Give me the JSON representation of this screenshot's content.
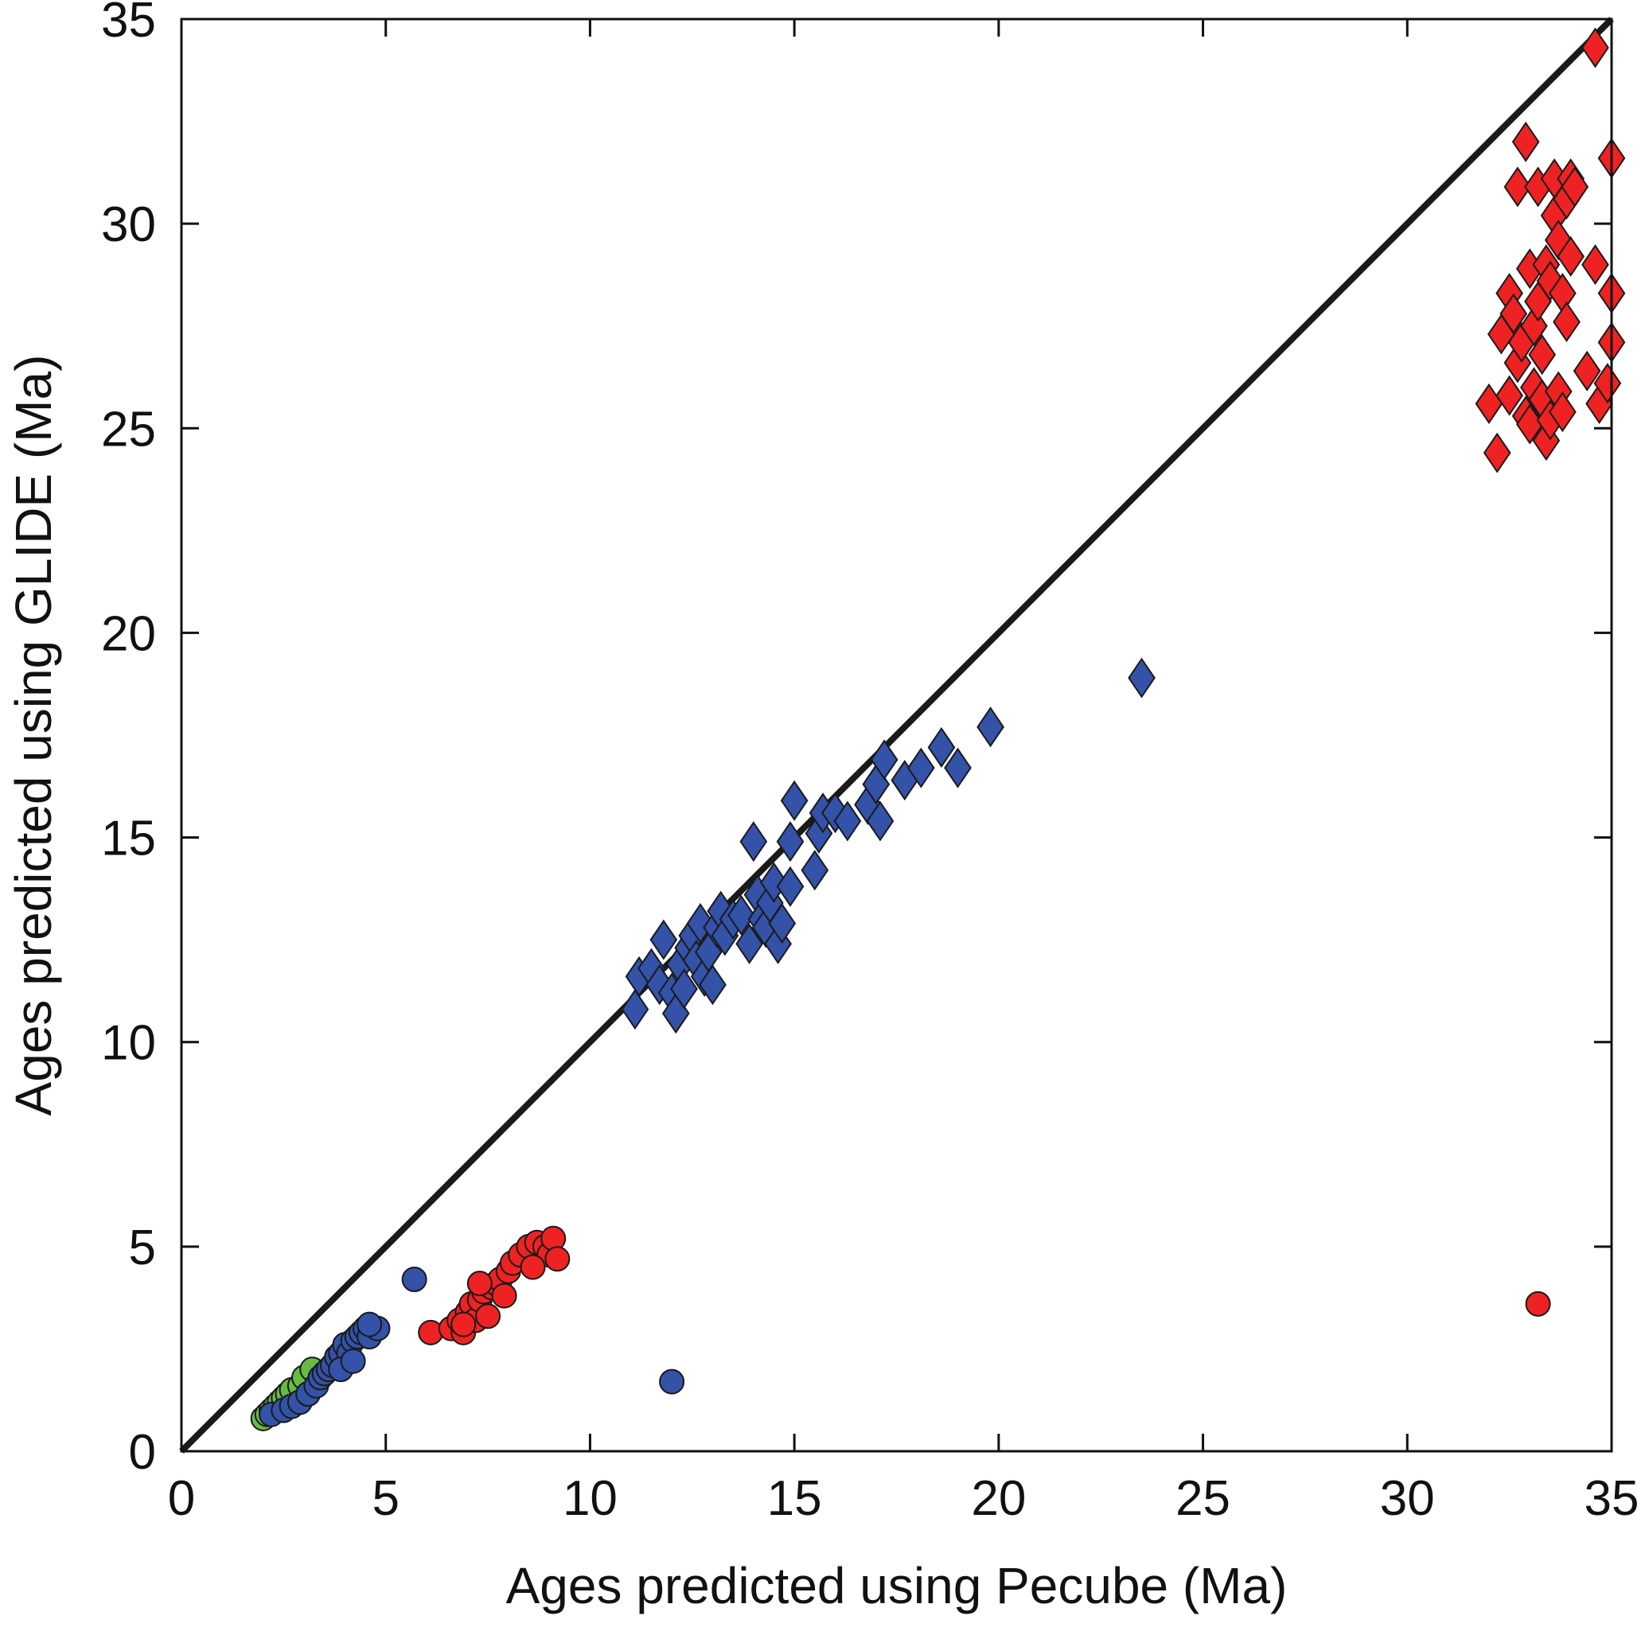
{
  "chart_data": {
    "type": "scatter",
    "title": "",
    "xlabel": "Ages predicted using Pecube (Ma)",
    "ylabel": "Ages predicted using GLIDE (Ma)",
    "xlim": [
      0,
      35
    ],
    "ylim": [
      0,
      35
    ],
    "xticks": [
      0,
      5,
      10,
      15,
      20,
      25,
      30,
      35
    ],
    "yticks": [
      0,
      5,
      10,
      15,
      20,
      25,
      30,
      35
    ],
    "grid": false,
    "legend": "none",
    "reference_line": {
      "from": [
        0,
        0
      ],
      "to": [
        35,
        35
      ],
      "color": "#1a1a1a"
    },
    "series": [
      {
        "marker": "circle",
        "color": "#66bb44",
        "points": [
          [
            2.0,
            0.8
          ],
          [
            2.1,
            0.9
          ],
          [
            2.2,
            1.0
          ],
          [
            2.3,
            1.1
          ],
          [
            2.4,
            1.2
          ],
          [
            2.5,
            1.3
          ],
          [
            2.6,
            1.4
          ],
          [
            2.7,
            1.5
          ],
          [
            2.9,
            1.6
          ],
          [
            3.0,
            1.8
          ],
          [
            3.2,
            2.0
          ]
        ]
      },
      {
        "marker": "circle",
        "color": "#3352a8",
        "points": [
          [
            2.2,
            0.9
          ],
          [
            2.5,
            1.0
          ],
          [
            2.7,
            1.1
          ],
          [
            2.9,
            1.2
          ],
          [
            3.1,
            1.4
          ],
          [
            3.3,
            1.6
          ],
          [
            3.4,
            1.8
          ],
          [
            3.5,
            1.9
          ],
          [
            3.6,
            2.0
          ],
          [
            3.7,
            2.1
          ],
          [
            3.8,
            2.3
          ],
          [
            3.9,
            2.4
          ],
          [
            4.0,
            2.6
          ],
          [
            4.1,
            2.4
          ],
          [
            4.2,
            2.7
          ],
          [
            4.3,
            2.8
          ],
          [
            4.4,
            2.9
          ],
          [
            4.5,
            3.0
          ],
          [
            4.6,
            2.8
          ],
          [
            4.8,
            3.0
          ],
          [
            3.9,
            2.0
          ],
          [
            4.2,
            2.2
          ],
          [
            4.6,
            3.1
          ],
          [
            5.7,
            4.2
          ],
          [
            12.0,
            1.7
          ]
        ]
      },
      {
        "marker": "circle",
        "color": "#ee2222",
        "points": [
          [
            6.1,
            2.9
          ],
          [
            6.6,
            3.0
          ],
          [
            6.8,
            3.2
          ],
          [
            6.9,
            2.9
          ],
          [
            7.0,
            3.4
          ],
          [
            7.1,
            3.6
          ],
          [
            7.2,
            3.2
          ],
          [
            7.3,
            3.7
          ],
          [
            7.4,
            3.9
          ],
          [
            7.5,
            3.3
          ],
          [
            7.6,
            4.0
          ],
          [
            7.7,
            4.1
          ],
          [
            7.8,
            4.2
          ],
          [
            7.9,
            3.8
          ],
          [
            8.0,
            4.4
          ],
          [
            8.1,
            4.6
          ],
          [
            8.3,
            4.8
          ],
          [
            8.5,
            5.0
          ],
          [
            8.7,
            5.1
          ],
          [
            8.9,
            5.0
          ],
          [
            9.0,
            4.8
          ],
          [
            9.1,
            5.2
          ],
          [
            9.2,
            4.7
          ],
          [
            8.6,
            4.5
          ],
          [
            7.3,
            4.1
          ],
          [
            6.9,
            3.1
          ],
          [
            33.2,
            3.6
          ]
        ]
      },
      {
        "marker": "diamond",
        "color": "#3352a8",
        "points": [
          [
            11.1,
            10.8
          ],
          [
            11.2,
            11.6
          ],
          [
            11.5,
            11.8
          ],
          [
            11.7,
            11.4
          ],
          [
            11.8,
            12.5
          ],
          [
            12.0,
            11.2
          ],
          [
            12.1,
            10.7
          ],
          [
            12.2,
            11.9
          ],
          [
            12.3,
            11.3
          ],
          [
            12.4,
            12.3
          ],
          [
            12.5,
            12.6
          ],
          [
            12.6,
            12.0
          ],
          [
            12.7,
            12.9
          ],
          [
            12.8,
            11.6
          ],
          [
            12.9,
            12.2
          ],
          [
            13.0,
            11.4
          ],
          [
            13.1,
            12.8
          ],
          [
            13.2,
            13.2
          ],
          [
            13.3,
            12.6
          ],
          [
            13.5,
            13.0
          ],
          [
            13.7,
            13.1
          ],
          [
            13.9,
            12.4
          ],
          [
            14.0,
            14.9
          ],
          [
            14.1,
            13.6
          ],
          [
            14.2,
            13.0
          ],
          [
            14.3,
            12.8
          ],
          [
            14.4,
            13.4
          ],
          [
            14.5,
            13.9
          ],
          [
            14.6,
            12.4
          ],
          [
            14.7,
            12.9
          ],
          [
            14.9,
            13.8
          ],
          [
            15.0,
            15.9
          ],
          [
            14.9,
            14.9
          ],
          [
            15.5,
            14.2
          ],
          [
            15.6,
            15.1
          ],
          [
            15.7,
            15.6
          ],
          [
            16.0,
            15.6
          ],
          [
            16.3,
            15.4
          ],
          [
            16.8,
            15.8
          ],
          [
            17.0,
            16.3
          ],
          [
            17.1,
            15.4
          ],
          [
            17.2,
            16.9
          ],
          [
            17.7,
            16.4
          ],
          [
            18.1,
            16.7
          ],
          [
            18.6,
            17.2
          ],
          [
            19.0,
            16.7
          ],
          [
            19.8,
            17.7
          ],
          [
            23.5,
            18.9
          ]
        ]
      },
      {
        "marker": "diamond",
        "color": "#ee2222",
        "points": [
          [
            32.0,
            25.6
          ],
          [
            32.2,
            24.4
          ],
          [
            32.3,
            27.3
          ],
          [
            32.5,
            28.3
          ],
          [
            32.5,
            25.8
          ],
          [
            32.6,
            27.8
          ],
          [
            32.7,
            26.6
          ],
          [
            32.7,
            30.9
          ],
          [
            32.8,
            27.1
          ],
          [
            32.9,
            25.3
          ],
          [
            32.9,
            32.0
          ],
          [
            33.0,
            28.9
          ],
          [
            33.0,
            25.1
          ],
          [
            33.1,
            27.5
          ],
          [
            33.1,
            26.0
          ],
          [
            33.2,
            30.9
          ],
          [
            33.2,
            28.1
          ],
          [
            33.3,
            25.7
          ],
          [
            33.3,
            26.8
          ],
          [
            33.4,
            24.7
          ],
          [
            33.4,
            29.0
          ],
          [
            33.5,
            25.2
          ],
          [
            33.5,
            28.6
          ],
          [
            33.6,
            30.2
          ],
          [
            33.6,
            31.1
          ],
          [
            33.7,
            25.9
          ],
          [
            33.7,
            29.6
          ],
          [
            33.8,
            28.3
          ],
          [
            33.8,
            25.4
          ],
          [
            33.9,
            30.6
          ],
          [
            33.9,
            27.6
          ],
          [
            34.0,
            31.1
          ],
          [
            34.0,
            29.2
          ],
          [
            34.1,
            30.9
          ],
          [
            34.4,
            26.4
          ],
          [
            34.6,
            29.0
          ],
          [
            34.6,
            34.3
          ],
          [
            34.7,
            25.6
          ],
          [
            34.9,
            26.1
          ],
          [
            35.0,
            31.6
          ],
          [
            35.0,
            28.3
          ],
          [
            35.0,
            27.1
          ]
        ]
      }
    ]
  }
}
